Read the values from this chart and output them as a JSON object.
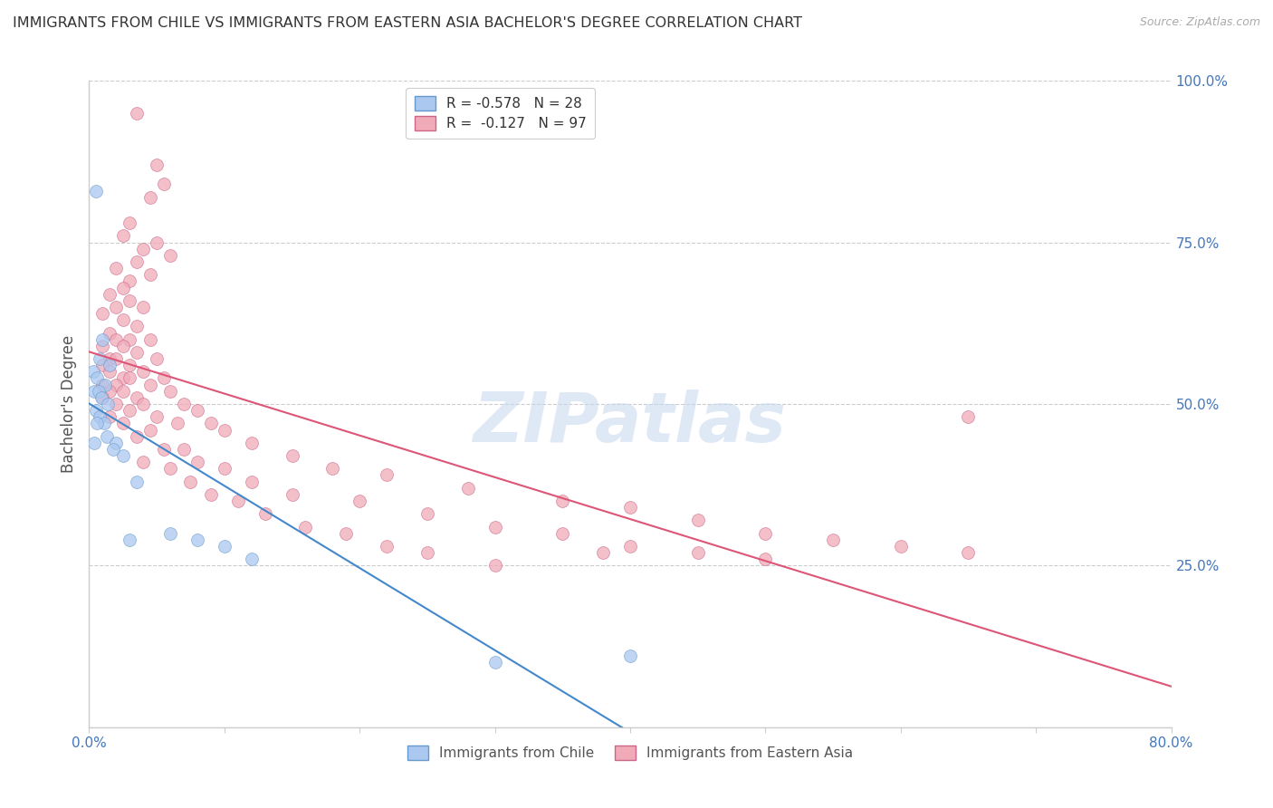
{
  "title": "IMMIGRANTS FROM CHILE VS IMMIGRANTS FROM EASTERN ASIA BACHELOR'S DEGREE CORRELATION CHART",
  "source": "Source: ZipAtlas.com",
  "ylabel": "Bachelor's Degree",
  "right_ytick_vals": [
    0.0,
    25.0,
    50.0,
    75.0,
    100.0
  ],
  "right_ytick_labels": [
    "",
    "25.0%",
    "50.0%",
    "75.0%",
    "100.0%"
  ],
  "xmin": 0.0,
  "xmax": 80.0,
  "ymin": 0.0,
  "ymax": 100.0,
  "watermark": "ZIPatlas",
  "chile_color": "#aac8f0",
  "chile_edge": "#6699cc",
  "eastasia_color": "#f0aab8",
  "eastasia_edge": "#cc6688",
  "trend_chile_color": "#4488cc",
  "trend_eastasia_color": "#dd5577",
  "background_color": "#ffffff",
  "grid_color": "#cccccc",
  "axis_color": "#cccccc",
  "title_color": "#333333",
  "right_label_color": "#4477bb",
  "marker_size": 100,
  "chile_points": [
    [
      0.5,
      83.0
    ],
    [
      1.0,
      60.0
    ],
    [
      0.8,
      57.0
    ],
    [
      1.5,
      56.0
    ],
    [
      0.3,
      55.0
    ],
    [
      0.6,
      54.0
    ],
    [
      1.2,
      53.0
    ],
    [
      0.4,
      52.0
    ],
    [
      0.7,
      52.0
    ],
    [
      0.9,
      51.0
    ],
    [
      1.4,
      50.0
    ],
    [
      0.5,
      49.0
    ],
    [
      0.8,
      48.0
    ],
    [
      1.1,
      47.0
    ],
    [
      0.6,
      47.0
    ],
    [
      1.3,
      45.0
    ],
    [
      2.0,
      44.0
    ],
    [
      0.4,
      44.0
    ],
    [
      1.8,
      43.0
    ],
    [
      2.5,
      42.0
    ],
    [
      3.5,
      38.0
    ],
    [
      6.0,
      30.0
    ],
    [
      8.0,
      29.0
    ],
    [
      3.0,
      29.0
    ],
    [
      10.0,
      28.0
    ],
    [
      12.0,
      26.0
    ],
    [
      30.0,
      10.0
    ],
    [
      40.0,
      11.0
    ]
  ],
  "eastasia_points": [
    [
      3.5,
      95.0
    ],
    [
      5.0,
      87.0
    ],
    [
      5.5,
      84.0
    ],
    [
      4.5,
      82.0
    ],
    [
      3.0,
      78.0
    ],
    [
      2.5,
      76.0
    ],
    [
      5.0,
      75.0
    ],
    [
      4.0,
      74.0
    ],
    [
      6.0,
      73.0
    ],
    [
      3.5,
      72.0
    ],
    [
      2.0,
      71.0
    ],
    [
      4.5,
      70.0
    ],
    [
      3.0,
      69.0
    ],
    [
      2.5,
      68.0
    ],
    [
      1.5,
      67.0
    ],
    [
      3.0,
      66.0
    ],
    [
      2.0,
      65.0
    ],
    [
      4.0,
      65.0
    ],
    [
      1.0,
      64.0
    ],
    [
      2.5,
      63.0
    ],
    [
      3.5,
      62.0
    ],
    [
      1.5,
      61.0
    ],
    [
      2.0,
      60.0
    ],
    [
      3.0,
      60.0
    ],
    [
      4.5,
      60.0
    ],
    [
      1.0,
      59.0
    ],
    [
      2.5,
      59.0
    ],
    [
      3.5,
      58.0
    ],
    [
      1.5,
      57.0
    ],
    [
      2.0,
      57.0
    ],
    [
      5.0,
      57.0
    ],
    [
      1.0,
      56.0
    ],
    [
      3.0,
      56.0
    ],
    [
      4.0,
      55.0
    ],
    [
      1.5,
      55.0
    ],
    [
      2.5,
      54.0
    ],
    [
      3.0,
      54.0
    ],
    [
      5.5,
      54.0
    ],
    [
      1.0,
      53.0
    ],
    [
      2.0,
      53.0
    ],
    [
      4.5,
      53.0
    ],
    [
      6.0,
      52.0
    ],
    [
      1.5,
      52.0
    ],
    [
      2.5,
      52.0
    ],
    [
      3.5,
      51.0
    ],
    [
      1.0,
      51.0
    ],
    [
      7.0,
      50.0
    ],
    [
      2.0,
      50.0
    ],
    [
      4.0,
      50.0
    ],
    [
      8.0,
      49.0
    ],
    [
      3.0,
      49.0
    ],
    [
      5.0,
      48.0
    ],
    [
      1.5,
      48.0
    ],
    [
      9.0,
      47.0
    ],
    [
      6.5,
      47.0
    ],
    [
      2.5,
      47.0
    ],
    [
      10.0,
      46.0
    ],
    [
      4.5,
      46.0
    ],
    [
      3.5,
      45.0
    ],
    [
      12.0,
      44.0
    ],
    [
      7.0,
      43.0
    ],
    [
      5.5,
      43.0
    ],
    [
      15.0,
      42.0
    ],
    [
      8.0,
      41.0
    ],
    [
      4.0,
      41.0
    ],
    [
      18.0,
      40.0
    ],
    [
      10.0,
      40.0
    ],
    [
      6.0,
      40.0
    ],
    [
      22.0,
      39.0
    ],
    [
      12.0,
      38.0
    ],
    [
      7.5,
      38.0
    ],
    [
      28.0,
      37.0
    ],
    [
      15.0,
      36.0
    ],
    [
      9.0,
      36.0
    ],
    [
      35.0,
      35.0
    ],
    [
      20.0,
      35.0
    ],
    [
      11.0,
      35.0
    ],
    [
      40.0,
      34.0
    ],
    [
      25.0,
      33.0
    ],
    [
      13.0,
      33.0
    ],
    [
      45.0,
      32.0
    ],
    [
      30.0,
      31.0
    ],
    [
      16.0,
      31.0
    ],
    [
      50.0,
      30.0
    ],
    [
      35.0,
      30.0
    ],
    [
      19.0,
      30.0
    ],
    [
      55.0,
      29.0
    ],
    [
      40.0,
      28.0
    ],
    [
      22.0,
      28.0
    ],
    [
      60.0,
      28.0
    ],
    [
      45.0,
      27.0
    ],
    [
      25.0,
      27.0
    ],
    [
      65.0,
      27.0
    ],
    [
      50.0,
      26.0
    ],
    [
      30.0,
      25.0
    ],
    [
      65.0,
      48.0
    ],
    [
      38.0,
      27.0
    ]
  ]
}
